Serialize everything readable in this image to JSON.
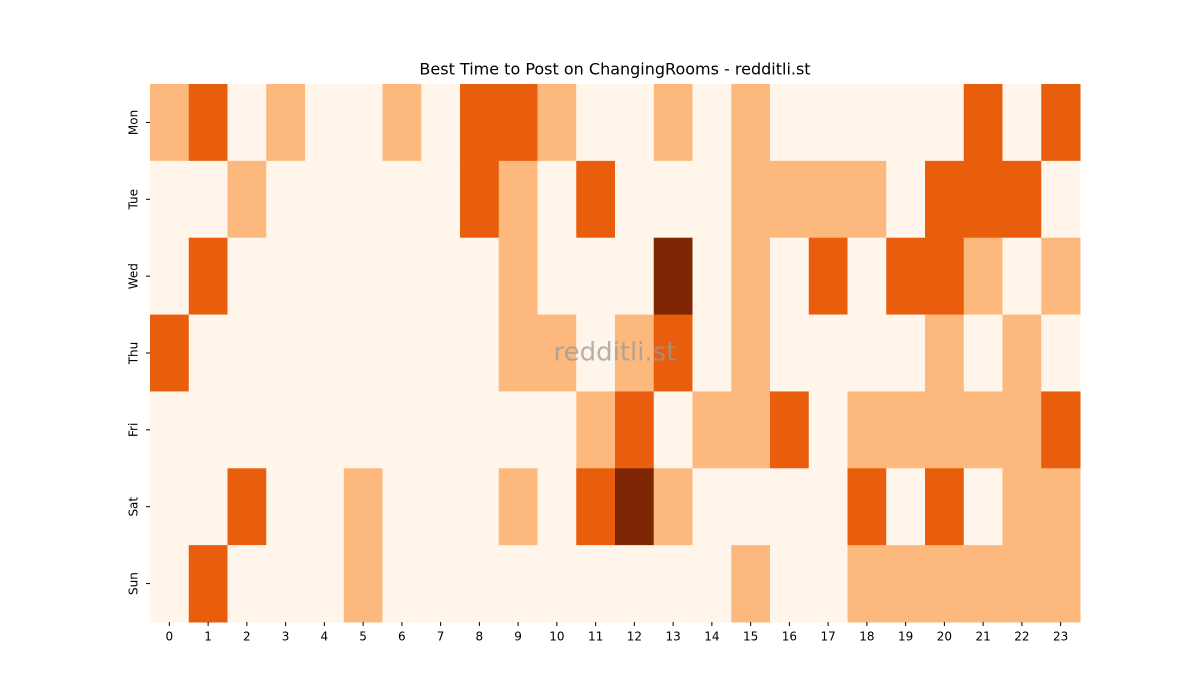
{
  "chart_data": {
    "type": "heatmap",
    "title": "Best Time to Post on ChangingRooms - redditli.st",
    "watermark": "redditli.st",
    "x": [
      "0",
      "1",
      "2",
      "3",
      "4",
      "5",
      "6",
      "7",
      "8",
      "9",
      "10",
      "11",
      "12",
      "13",
      "14",
      "15",
      "16",
      "17",
      "18",
      "19",
      "20",
      "21",
      "22",
      "23"
    ],
    "y": [
      "Mon",
      "Tue",
      "Wed",
      "Thu",
      "Fri",
      "Sat",
      "Sun"
    ],
    "values": [
      [
        1,
        2,
        0,
        1,
        0,
        0,
        1,
        0,
        2,
        2,
        1,
        0,
        0,
        1,
        0,
        1,
        0,
        0,
        0,
        0,
        0,
        2,
        0,
        2
      ],
      [
        0,
        0,
        1,
        0,
        0,
        0,
        0,
        0,
        2,
        1,
        0,
        2,
        0,
        0,
        0,
        1,
        1,
        1,
        1,
        0,
        2,
        2,
        2,
        0
      ],
      [
        0,
        2,
        0,
        0,
        0,
        0,
        0,
        0,
        0,
        1,
        0,
        0,
        0,
        3,
        0,
        1,
        0,
        2,
        0,
        2,
        2,
        1,
        0,
        1
      ],
      [
        2,
        0,
        0,
        0,
        0,
        0,
        0,
        0,
        0,
        1,
        1,
        0,
        1,
        2,
        0,
        1,
        0,
        0,
        0,
        0,
        1,
        0,
        1,
        0
      ],
      [
        0,
        0,
        0,
        0,
        0,
        0,
        0,
        0,
        0,
        0,
        0,
        1,
        2,
        0,
        1,
        1,
        2,
        0,
        1,
        1,
        1,
        1,
        1,
        2
      ],
      [
        0,
        0,
        2,
        0,
        0,
        1,
        0,
        0,
        0,
        1,
        0,
        2,
        3,
        1,
        0,
        0,
        0,
        0,
        2,
        0,
        2,
        0,
        1,
        1
      ],
      [
        0,
        2,
        0,
        0,
        0,
        1,
        0,
        0,
        0,
        0,
        0,
        0,
        0,
        0,
        0,
        1,
        0,
        0,
        1,
        1,
        1,
        1,
        1,
        1
      ]
    ],
    "colors": [
      "#fff5eb",
      "#fdb97d",
      "#e95e0d",
      "#7f2704"
    ]
  }
}
